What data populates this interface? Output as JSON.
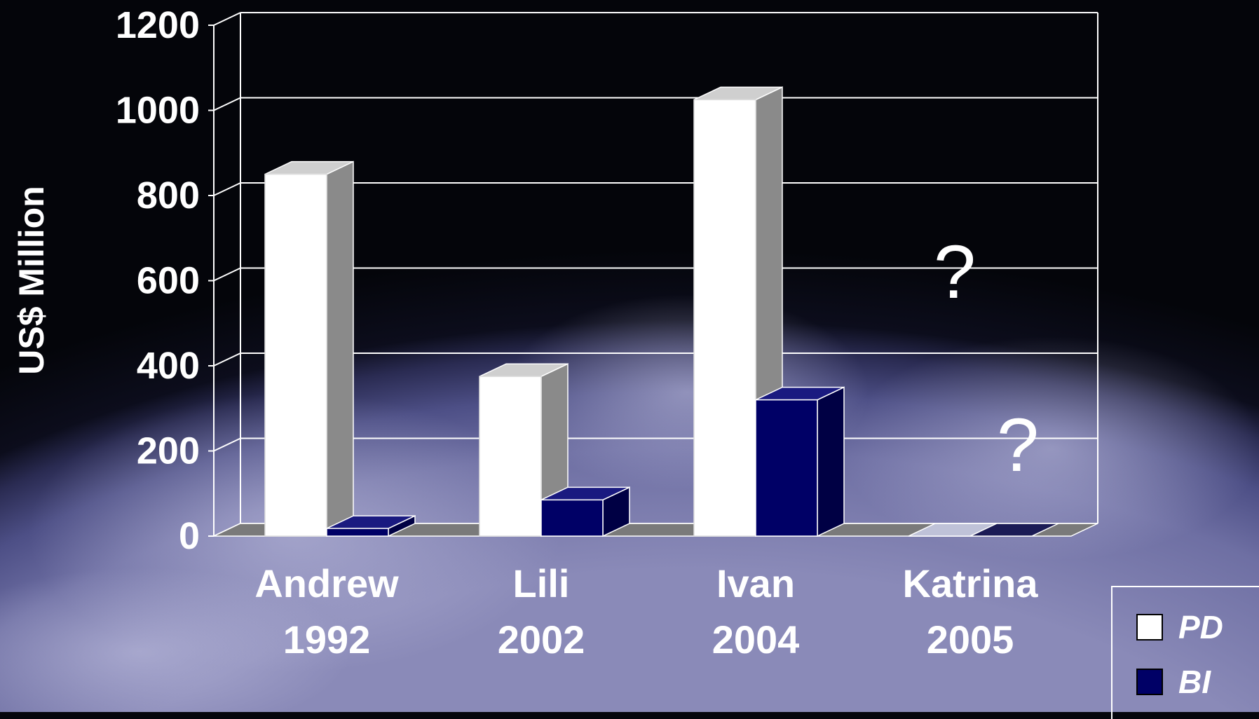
{
  "chart_data": {
    "type": "bar",
    "style": "3d-clustered",
    "ylabel": "US$ Million",
    "ylim": [
      0,
      1200
    ],
    "yticks": [
      "0",
      "200",
      "400",
      "600",
      "800",
      "1000",
      "1200"
    ],
    "categories": [
      {
        "name": "Andrew",
        "year": "1992"
      },
      {
        "name": "Lili",
        "year": "2002"
      },
      {
        "name": "Ivan",
        "year": "2004"
      },
      {
        "name": "Katrina",
        "year": "2005"
      }
    ],
    "series": [
      {
        "name": "PD",
        "color": "#ffffff",
        "values": [
          850,
          375,
          1025,
          null
        ]
      },
      {
        "name": "BI",
        "color": "#000066",
        "values": [
          18,
          85,
          320,
          null
        ]
      }
    ],
    "annotations": [
      "?",
      "?"
    ],
    "grid": true,
    "legend_position": "bottom-right"
  }
}
